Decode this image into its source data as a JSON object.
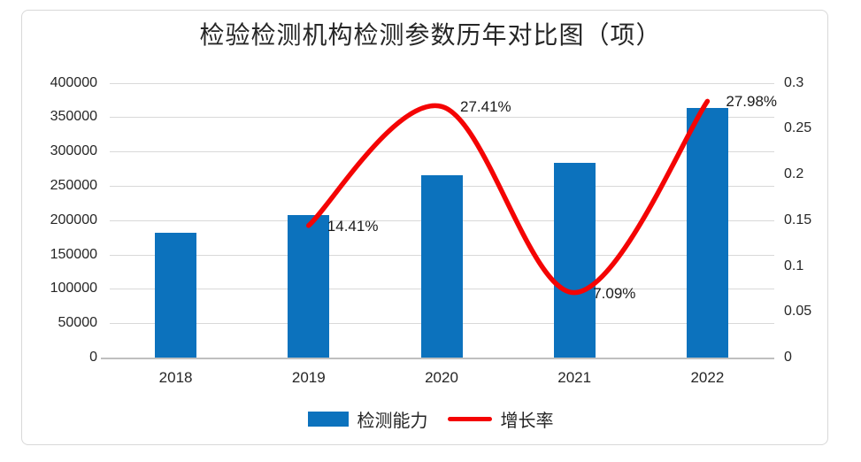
{
  "chart_data": {
    "type": "combo-bar-line",
    "title": "检验检测机构检测参数历年对比图（项）",
    "categories": [
      "2018",
      "2019",
      "2020",
      "2021",
      "2022"
    ],
    "series": [
      {
        "name": "检测能力",
        "type": "bar",
        "axis": "left",
        "color": "#0c72bd",
        "values": [
          182000,
          208000,
          265000,
          284000,
          363000
        ]
      },
      {
        "name": "增长率",
        "type": "line",
        "axis": "right",
        "color": "#f40404",
        "smooth": true,
        "values": [
          null,
          0.1441,
          0.2741,
          0.0709,
          0.2798
        ],
        "point_labels": [
          null,
          "14.41%",
          "27.41%",
          "7.09%",
          "27.98%"
        ]
      }
    ],
    "left_axis": {
      "min": 0,
      "max": 400000,
      "step": 50000,
      "ticks": [
        "0",
        "50000",
        "100000",
        "150000",
        "200000",
        "250000",
        "300000",
        "350000",
        "400000"
      ]
    },
    "right_axis": {
      "min": 0,
      "max": 0.3,
      "step": 0.05,
      "ticks": [
        "0",
        "0.05",
        "0.1",
        "0.15",
        "0.2",
        "0.25",
        "0.3"
      ]
    },
    "grid": true,
    "legend_position": "bottom",
    "legend": [
      "检测能力",
      "增长率"
    ]
  }
}
